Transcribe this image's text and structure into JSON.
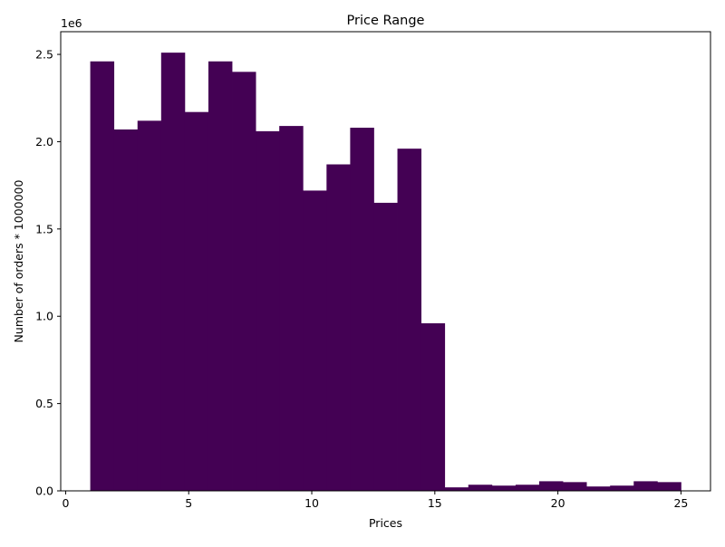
{
  "chart_data": {
    "type": "bar",
    "title": "Price Range",
    "xlabel": "Prices",
    "ylabel": "Number of orders * 1000000",
    "y_offset_label": "1e6",
    "xlim": [
      -0.2,
      26.2
    ],
    "ylim": [
      0,
      2630000
    ],
    "xticks": [
      0,
      5,
      10,
      15,
      20,
      25
    ],
    "yticks": [
      0.0,
      0.5,
      1.0,
      1.5,
      2.0,
      2.5
    ],
    "ytick_labels": [
      "0.0",
      "0.5",
      "1.0",
      "1.5",
      "2.0",
      "2.5"
    ],
    "grid": false,
    "bin_edges": [
      1.0,
      1.96,
      2.92,
      3.88,
      4.84,
      5.8,
      6.76,
      7.72,
      8.68,
      9.64,
      10.6,
      11.56,
      12.52,
      13.48,
      14.44,
      15.4,
      16.36,
      17.32,
      18.28,
      19.24,
      20.2,
      21.16,
      22.12,
      23.08,
      24.04,
      25.0
    ],
    "values": [
      2460000,
      2070000,
      2120000,
      2510000,
      2170000,
      2460000,
      2400000,
      2060000,
      2090000,
      1720000,
      1870000,
      2080000,
      1650000,
      1960000,
      960000,
      20000,
      35000,
      30000,
      35000,
      55000,
      50000,
      25000,
      30000,
      55000,
      50000
    ],
    "bar_color": "#440154"
  }
}
